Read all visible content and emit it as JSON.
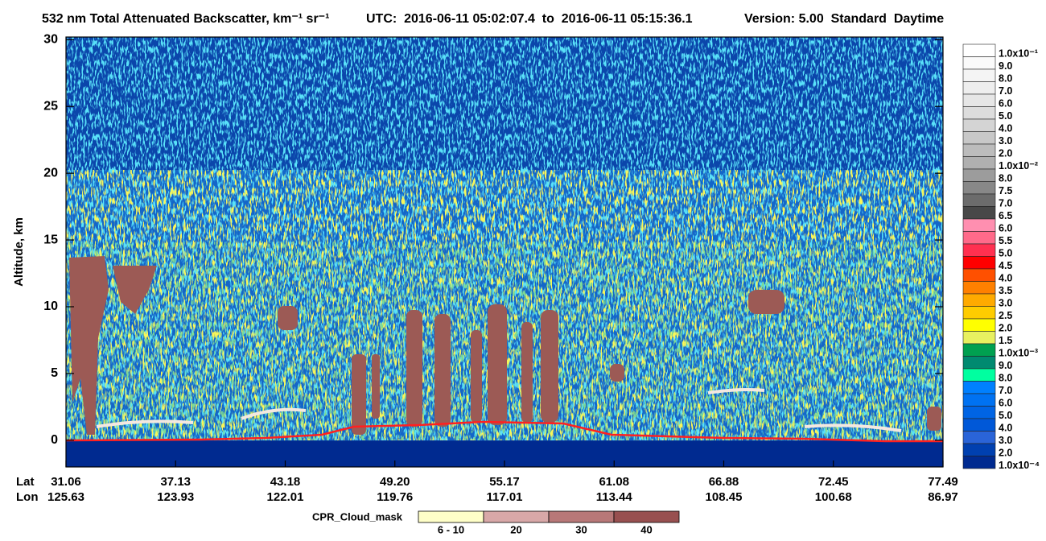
{
  "chart_data": {
    "type": "heatmap",
    "title": "532 nm Total Attenuated Backscatter, km⁻¹ sr⁻¹",
    "time_range": "UTC:  2016-06-11 05:02:07.4  to  2016-06-11 05:15:36.1",
    "version": "Version: 5.00  Standard  Daytime",
    "ylabel": "Altitude, km",
    "ylim": [
      -2,
      30.2
    ],
    "yticks": [
      0,
      5,
      10,
      15,
      20,
      25,
      30
    ],
    "x_row_labels": [
      "Lat",
      "Lon"
    ],
    "lat": [
      "31.06",
      "37.13",
      "43.18",
      "49.20",
      "55.17",
      "61.08",
      "66.88",
      "72.45",
      "77.49"
    ],
    "lon": [
      "125.63",
      "123.93",
      "122.01",
      "119.76",
      "117.01",
      "113.44",
      "108.45",
      "100.68",
      "86.97"
    ],
    "colorbar": {
      "labels": [
        "1.0x10⁻¹",
        "9.0",
        "8.0",
        "7.0",
        "6.0",
        "5.0",
        "4.0",
        "3.0",
        "2.0",
        "1.0x10⁻²",
        "8.0",
        "7.5",
        "7.0",
        "6.5",
        "6.0",
        "5.5",
        "5.0",
        "4.5",
        "4.0",
        "3.5",
        "3.0",
        "2.5",
        "2.0",
        "1.5",
        "1.0x10⁻³",
        "9.0",
        "8.0",
        "7.0",
        "6.0",
        "5.0",
        "4.0",
        "3.0",
        "2.0",
        "1.0x10⁻⁴"
      ],
      "colors": [
        "#ffffff",
        "#fafafa",
        "#f4f4f4",
        "#eeeeee",
        "#e6e6e6",
        "#dddddd",
        "#d4d4d4",
        "#c8c8c8",
        "#bcbcbc",
        "#b0b0b0",
        "#9c9c9c",
        "#888888",
        "#6c6c6c",
        "#484848",
        "#ff8fb0",
        "#ff6a8a",
        "#ff3050",
        "#ff0000",
        "#ff5000",
        "#ff8000",
        "#ffaa00",
        "#ffcc00",
        "#ffff00",
        "#e8f060",
        "#00a050",
        "#008a70",
        "#00ffa0",
        "#0080ff",
        "#0072f2",
        "#0064e4",
        "#0058d8",
        "#2a64d8",
        "#0040b0",
        "#002a90"
      ]
    },
    "cloud_mask": {
      "label": "CPR_Cloud_mask",
      "categories": [
        "6 - 10",
        "20",
        "30",
        "40"
      ],
      "colors": [
        "#ffffc8",
        "#d8a8a8",
        "#b87878",
        "#985050"
      ]
    }
  }
}
